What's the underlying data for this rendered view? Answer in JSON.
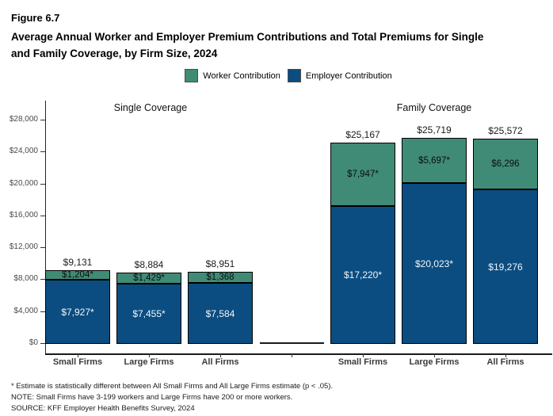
{
  "header": {
    "figure_label": "Figure 6.7",
    "title_line1": "Average Annual Worker and Employer Premium Contributions and Total Premiums for Single",
    "title_line2": "and Family Coverage, by Firm Size, 2024"
  },
  "legend": {
    "items": [
      {
        "name": "worker",
        "label": "Worker Contribution",
        "color": "#3f8b76"
      },
      {
        "name": "employer",
        "label": "Employer Contribution",
        "color": "#0b4d80"
      }
    ]
  },
  "chart_data": {
    "type": "bar",
    "stacked": true,
    "unit": "USD",
    "grid": false,
    "legend_position": "top",
    "panels": [
      "Single Coverage",
      "Family Coverage"
    ],
    "series": [
      {
        "name": "Worker Contribution",
        "color": "#3f8b76"
      },
      {
        "name": "Employer Contribution",
        "color": "#0b4d80"
      }
    ],
    "groups": [
      {
        "panel": "Single Coverage",
        "category": "Small Firms",
        "employer": 7927,
        "worker": 1204,
        "total": 9131,
        "employer_label": "$7,927*",
        "worker_label": "$1,204*",
        "total_label": "$9,131"
      },
      {
        "panel": "Single Coverage",
        "category": "Large Firms",
        "employer": 7455,
        "worker": 1429,
        "total": 8884,
        "employer_label": "$7,455*",
        "worker_label": "$1,429*",
        "total_label": "$8,884"
      },
      {
        "panel": "Single Coverage",
        "category": "All Firms",
        "employer": 7584,
        "worker": 1368,
        "total": 8951,
        "employer_label": "$7,584",
        "worker_label": "$1,368",
        "total_label": "$8,951"
      },
      {
        "panel": "Family Coverage",
        "category": "Small Firms",
        "employer": 17220,
        "worker": 7947,
        "total": 25167,
        "employer_label": "$17,220*",
        "worker_label": "$7,947*",
        "total_label": "$25,167"
      },
      {
        "panel": "Family Coverage",
        "category": "Large Firms",
        "employer": 20023,
        "worker": 5697,
        "total": 25719,
        "employer_label": "$20,023*",
        "worker_label": "$5,697*",
        "total_label": "$25,719"
      },
      {
        "panel": "Family Coverage",
        "category": "All Firms",
        "employer": 19276,
        "worker": 6296,
        "total": 25572,
        "employer_label": "$19,276",
        "worker_label": "$6,296",
        "total_label": "$25,572"
      }
    ],
    "y_axis": {
      "ylim": [
        0,
        28000
      ],
      "ticks": [
        0,
        4000,
        8000,
        12000,
        16000,
        20000,
        24000,
        28000
      ],
      "tick_labels": [
        "$0",
        "$4,000",
        "$8,000",
        "$12,000",
        "$16,000",
        "$20,000",
        "$24,000",
        "$28,000"
      ]
    }
  },
  "footnotes": {
    "line1": "* Estimate is statistically different between All Small Firms and All Large Firms estimate (p < .05).",
    "line2": "NOTE: Small Firms have 3-199 workers and Large Firms have 200 or more workers.",
    "line3": "SOURCE: KFF Employer Health Benefits Survey, 2024"
  }
}
